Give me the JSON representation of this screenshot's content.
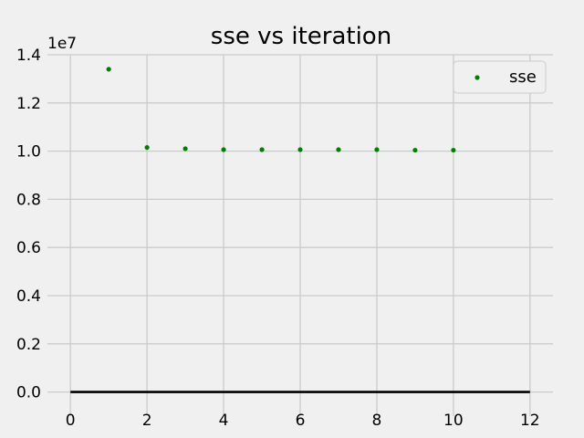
{
  "chart_data": {
    "type": "scatter",
    "title": "sse vs iteration",
    "xlabel": "",
    "ylabel": "",
    "x_ticks": [
      0,
      2,
      4,
      6,
      8,
      10,
      12
    ],
    "y_ticks": [
      0.0,
      0.2,
      0.4,
      0.6,
      0.8,
      1.0,
      1.2,
      1.4
    ],
    "y_tick_labels": [
      "0.0",
      "0.2",
      "0.4",
      "0.6",
      "0.8",
      "1.0",
      "1.2",
      "1.4"
    ],
    "y_offset_label": "1e7",
    "xlim": [
      -0.6,
      12.6
    ],
    "ylim": [
      -0.1,
      1.4
    ],
    "grid": true,
    "legend_position": "top-right",
    "series": [
      {
        "name": "sse",
        "color": "#008000",
        "marker": "dot",
        "x": [
          1,
          2,
          3,
          4,
          5,
          6,
          7,
          8,
          9,
          10
        ],
        "y": [
          1.34,
          1.015,
          1.01,
          1.006,
          1.006,
          1.006,
          1.006,
          1.006,
          1.004,
          1.004
        ]
      }
    ],
    "baseline": {
      "y": 0.0,
      "x_from": 0,
      "x_to": 12,
      "color": "#000000"
    }
  }
}
